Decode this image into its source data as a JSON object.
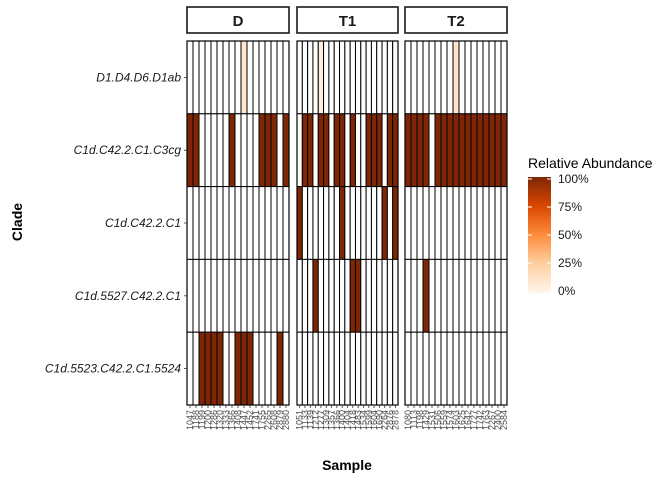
{
  "chart_data": {
    "type": "heatmap",
    "xlabel": "Sample",
    "ylabel": "Clade",
    "clades": [
      "D1.D4.D6.D1ab",
      "C1d.C42.2.C1.C3cg",
      "C1d.C42.2.C1",
      "C1d.5527.C42.2.C1",
      "C1d.5523.C42.2.C1.5524"
    ],
    "panels": [
      {
        "label": "D",
        "samples": [
          "1047",
          "1188",
          "1199",
          "1200",
          "1286",
          "1320",
          "1333",
          "1366",
          "1408",
          "1447",
          "1452",
          "1741",
          "1755",
          "2265",
          "2608",
          "2879",
          "2880"
        ],
        "values": [
          [
            0,
            0,
            0,
            0,
            0,
            0,
            0,
            0,
            0,
            0.1,
            0,
            0,
            0,
            0,
            0,
            0,
            0
          ],
          [
            1,
            1,
            0,
            0,
            0,
            0,
            0,
            1,
            0,
            0,
            0,
            0,
            1,
            1,
            1,
            0,
            1
          ],
          [
            0,
            0,
            0,
            0,
            0,
            0,
            0,
            0,
            0,
            0,
            0,
            0,
            0,
            0,
            0,
            0,
            0
          ],
          [
            0,
            0,
            0,
            0,
            0,
            0,
            0,
            0,
            0,
            0,
            0,
            0,
            0,
            0,
            0,
            0,
            0
          ],
          [
            0,
            0,
            1,
            1,
            1,
            1,
            0,
            0,
            1,
            1,
            1,
            0,
            0,
            0,
            0,
            1,
            0
          ]
        ]
      },
      {
        "label": "T1",
        "samples": [
          "1051",
          "1133",
          "1139",
          "1212",
          "1277",
          "1309",
          "1357",
          "1366",
          "1400",
          "1404",
          "1418",
          "1483",
          "1534",
          "1599",
          "1604",
          "1690",
          "2264",
          "2876",
          "2878"
        ],
        "values": [
          [
            0,
            0,
            0,
            0,
            0.06,
            0,
            0,
            0,
            0,
            0,
            0,
            0,
            0,
            0,
            0,
            0,
            0,
            0,
            0
          ],
          [
            0,
            1,
            1,
            0,
            1,
            1,
            0,
            1,
            1,
            0,
            1,
            0,
            0,
            1,
            1,
            1,
            0,
            1,
            1
          ],
          [
            1,
            0,
            0,
            0,
            0,
            0,
            0,
            0,
            1,
            0,
            0,
            0,
            0,
            0,
            0,
            0,
            1,
            0,
            1
          ],
          [
            0,
            0,
            0,
            1,
            0,
            0,
            0,
            0,
            0,
            0,
            1,
            1,
            0,
            0,
            0,
            0,
            0,
            0,
            0
          ],
          [
            0,
            0,
            0,
            0,
            0,
            0,
            0,
            0,
            0,
            0,
            0,
            0,
            0,
            0,
            0,
            0,
            0,
            0,
            0
          ]
        ]
      },
      {
        "label": "T2",
        "samples": [
          "1080",
          "1113",
          "1198",
          "1429",
          "1531",
          "1506",
          "1559",
          "1574",
          "1603",
          "1625",
          "1642",
          "1727",
          "1742",
          "1763",
          "2267",
          "2400",
          "2584"
        ],
        "values": [
          [
            0,
            0,
            0,
            0,
            0,
            0,
            0,
            0,
            0.12,
            0,
            0,
            0,
            0,
            0,
            0,
            0,
            0
          ],
          [
            1,
            1,
            1,
            1,
            0,
            1,
            1,
            1,
            1,
            1,
            1,
            1,
            1,
            1,
            1,
            1,
            1
          ],
          [
            0,
            0,
            0,
            0,
            0,
            0,
            0,
            0,
            0,
            0,
            0,
            0,
            0,
            0,
            0,
            0,
            0
          ],
          [
            0,
            0,
            0,
            1,
            0,
            0,
            0,
            0,
            0,
            0,
            0,
            0,
            0,
            0,
            0,
            0,
            0
          ],
          [
            0,
            0,
            0,
            0,
            0,
            0,
            0,
            0,
            0,
            0,
            0,
            0,
            0,
            0,
            0,
            0,
            0
          ]
        ]
      }
    ],
    "legend": {
      "title": "Relative Abundance",
      "ticks": [
        "100%",
        "75%",
        "50%",
        "25%",
        "0%"
      ],
      "low_color": "#FFF5EB",
      "high_color": "#7F2704"
    }
  }
}
